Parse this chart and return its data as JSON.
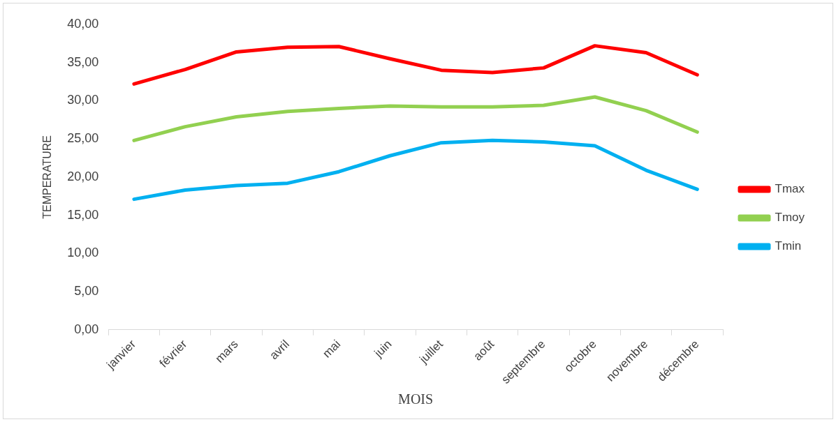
{
  "chart_data": {
    "type": "line",
    "xlabel": "MOIS",
    "ylabel": "TEMPERATURE",
    "categories": [
      "janvier",
      "février",
      "mars",
      "avril",
      "mai",
      "juin",
      "juillet",
      "août",
      "septembre",
      "octobre",
      "novembre",
      "décembre"
    ],
    "series": [
      {
        "name": "Tmax",
        "color": "#ff0000",
        "values": [
          32.2,
          34.1,
          36.4,
          37.0,
          37.1,
          35.5,
          34.0,
          33.7,
          34.3,
          37.2,
          36.3,
          33.4
        ]
      },
      {
        "name": "Tmoy",
        "color": "#92d050",
        "values": [
          24.8,
          26.6,
          27.9,
          28.6,
          29.0,
          29.3,
          29.2,
          29.2,
          29.4,
          30.5,
          28.7,
          25.9
        ]
      },
      {
        "name": "Tmin",
        "color": "#00b0f0",
        "values": [
          17.1,
          18.3,
          18.9,
          19.2,
          20.7,
          22.8,
          24.5,
          24.8,
          24.6,
          24.1,
          20.9,
          18.4
        ]
      }
    ],
    "ylim": [
      0,
      40
    ],
    "yticks": [
      {
        "value": 0,
        "label": "0,00"
      },
      {
        "value": 5,
        "label": "5,00"
      },
      {
        "value": 10,
        "label": "10,00"
      },
      {
        "value": 15,
        "label": "15,00"
      },
      {
        "value": 20,
        "label": "20,00"
      },
      {
        "value": 25,
        "label": "25,00"
      },
      {
        "value": 30,
        "label": "30,00"
      },
      {
        "value": 35,
        "label": "35,00"
      },
      {
        "value": 40,
        "label": "40,00"
      }
    ],
    "grid": false,
    "legend": "right",
    "marker": "none",
    "line_style": "solid"
  }
}
